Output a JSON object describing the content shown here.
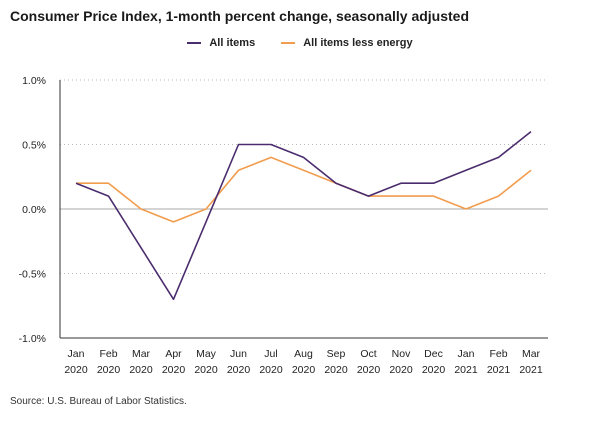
{
  "chart_data": {
    "type": "line",
    "title": "Consumer Price Index, 1-month percent change, seasonally adjusted",
    "categories": [
      [
        "Jan",
        "2020"
      ],
      [
        "Feb",
        "2020"
      ],
      [
        "Mar",
        "2020"
      ],
      [
        "Apr",
        "2020"
      ],
      [
        "May",
        "2020"
      ],
      [
        "Jun",
        "2020"
      ],
      [
        "Jul",
        "2020"
      ],
      [
        "Aug",
        "2020"
      ],
      [
        "Sep",
        "2020"
      ],
      [
        "Oct",
        "2020"
      ],
      [
        "Nov",
        "2020"
      ],
      [
        "Dec",
        "2020"
      ],
      [
        "Jan",
        "2021"
      ],
      [
        "Feb",
        "2021"
      ],
      [
        "Mar",
        "2021"
      ]
    ],
    "series": [
      {
        "name": "All items",
        "color": "#4b2d6e",
        "values": [
          0.2,
          0.1,
          -0.3,
          -0.7,
          -0.1,
          0.5,
          0.5,
          0.4,
          0.2,
          0.1,
          0.2,
          0.2,
          0.3,
          0.4,
          0.6
        ]
      },
      {
        "name": "All items less energy",
        "color": "#f29c4e",
        "values": [
          0.2,
          0.2,
          0.0,
          -0.1,
          0.0,
          0.3,
          0.4,
          0.3,
          0.2,
          0.1,
          0.1,
          0.1,
          0.0,
          0.1,
          0.3
        ]
      }
    ],
    "ylim": [
      -1.0,
      1.0
    ],
    "yticks": [
      "1.0%",
      "0.5%",
      "0.0%",
      "-0.5%",
      "-1.0%"
    ],
    "ytick_values": [
      1.0,
      0.5,
      0.0,
      -0.5,
      -1.0
    ],
    "xlabel": "",
    "ylabel": "",
    "grid": "horizontal dotted",
    "legend_position": "top"
  },
  "source": "Source: U.S. Bureau of Labor Statistics."
}
